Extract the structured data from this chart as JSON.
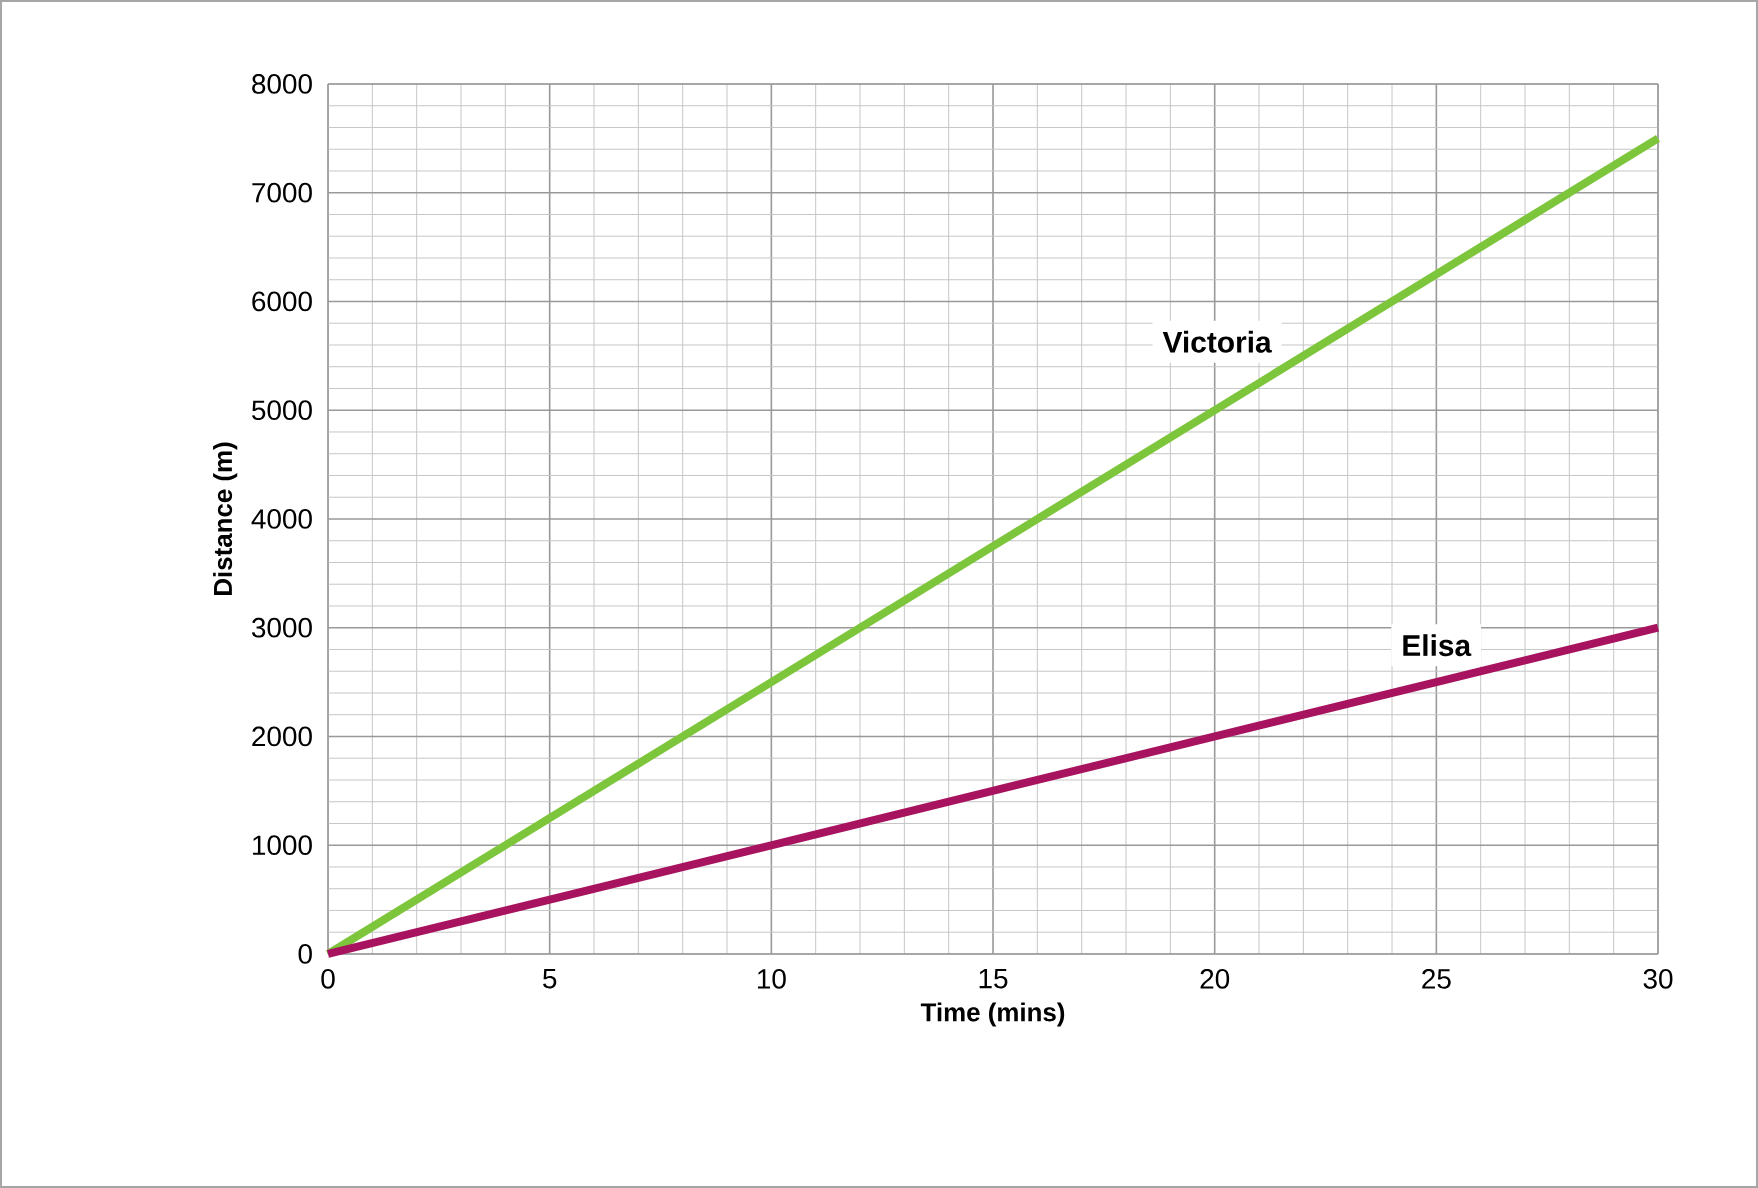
{
  "chart_data": {
    "type": "line",
    "xlabel": "Time (mins)",
    "ylabel": "Distance (m)",
    "xlim": [
      0,
      30
    ],
    "xticks": [
      0,
      5,
      10,
      15,
      20,
      25,
      30
    ],
    "ylim": [
      0,
      8000
    ],
    "yticks": [
      0,
      1000,
      2000,
      3000,
      4000,
      5000,
      6000,
      7000,
      8000
    ],
    "grid": true,
    "x": [
      0,
      30
    ],
    "series": [
      {
        "name": "Victoria",
        "color": "#7dc63b",
        "values": [
          0,
          7500
        ]
      },
      {
        "name": "Elisa",
        "color": "#a8135f",
        "values": [
          0,
          3000
        ]
      }
    ]
  }
}
